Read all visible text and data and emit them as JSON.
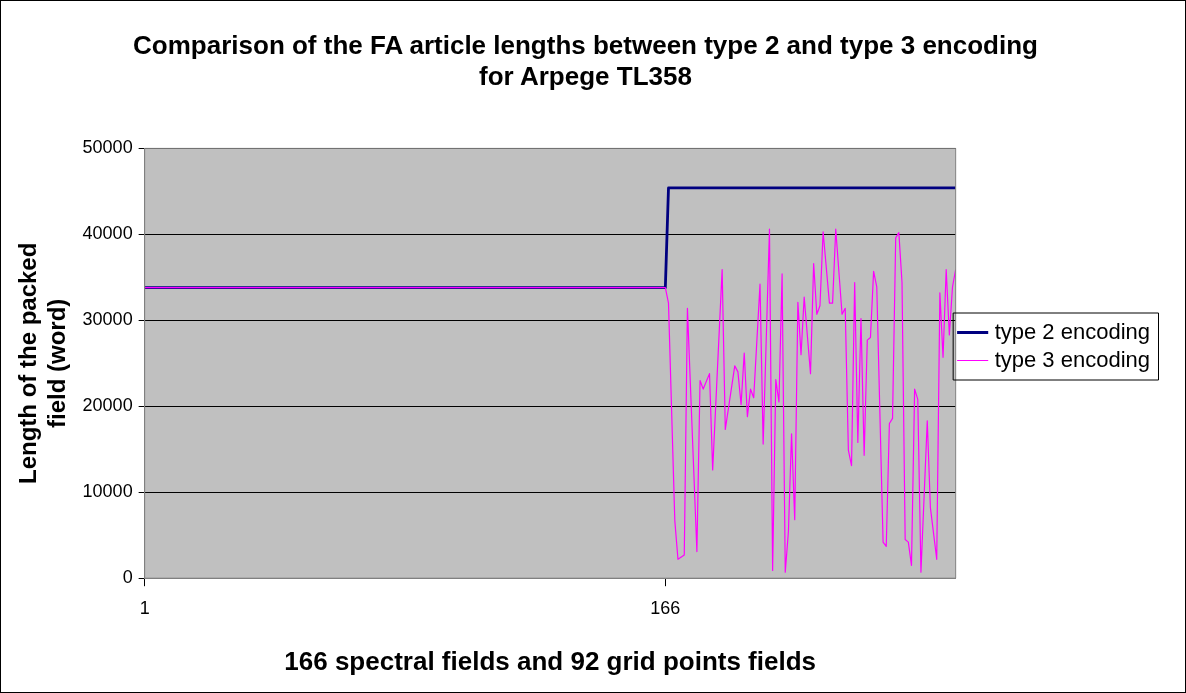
{
  "chart_data": {
    "type": "line",
    "title": "Comparison of the FA article lengths between type 2 and type 3 encoding for Arpege TL358",
    "xlabel": "166 spectral fields and 92 grid points fields",
    "ylabel": "Length of the packed field (word)",
    "xlim": [
      1,
      258
    ],
    "xticks": [
      1,
      166
    ],
    "ylim": [
      0,
      50000
    ],
    "yticks": [
      0,
      10000,
      20000,
      30000,
      40000,
      50000
    ],
    "grid": "y",
    "legend": "right",
    "series": [
      {
        "name": "type 2 encoding",
        "color": "#000080",
        "x": [
          1,
          166,
          167,
          258
        ],
        "values": [
          33800,
          33800,
          45400,
          45400
        ]
      },
      {
        "name": "type 3 encoding",
        "color": "#ff00ff",
        "x": [
          1,
          166,
          167,
          169,
          170,
          172,
          173,
          176,
          177,
          178,
          180,
          181,
          184,
          185,
          188,
          189,
          190,
          191,
          192,
          193,
          194,
          196,
          197,
          199,
          200,
          201,
          202,
          203,
          204,
          205,
          206,
          207,
          208,
          209,
          210,
          212,
          213,
          214,
          215,
          216,
          218,
          219,
          220,
          222,
          223,
          224,
          225,
          226,
          227,
          228,
          229,
          230,
          231,
          232,
          233,
          235,
          236,
          237,
          238,
          239,
          240,
          241,
          242,
          243,
          244,
          245,
          246,
          247,
          249,
          250,
          252,
          253,
          254,
          255,
          256,
          257,
          258
        ],
        "values": [
          33800,
          33800,
          32000,
          6700,
          2200,
          2700,
          31400,
          3100,
          23000,
          22000,
          23800,
          12600,
          35900,
          17300,
          24700,
          24000,
          20200,
          26200,
          18800,
          22000,
          21000,
          34200,
          15600,
          40600,
          900,
          23100,
          20500,
          35400,
          700,
          5400,
          16800,
          6800,
          32100,
          26000,
          32700,
          23800,
          36600,
          30700,
          31700,
          40300,
          32000,
          32000,
          40600,
          30700,
          31400,
          14900,
          13100,
          34400,
          15800,
          30200,
          14300,
          27700,
          28000,
          35700,
          33900,
          4200,
          3700,
          18000,
          18600,
          39600,
          40200,
          34400,
          4500,
          4200,
          1500,
          22000,
          20800,
          700,
          18300,
          8200,
          2200,
          33200,
          25700,
          35900,
          28300,
          33900,
          35900
        ]
      }
    ]
  }
}
